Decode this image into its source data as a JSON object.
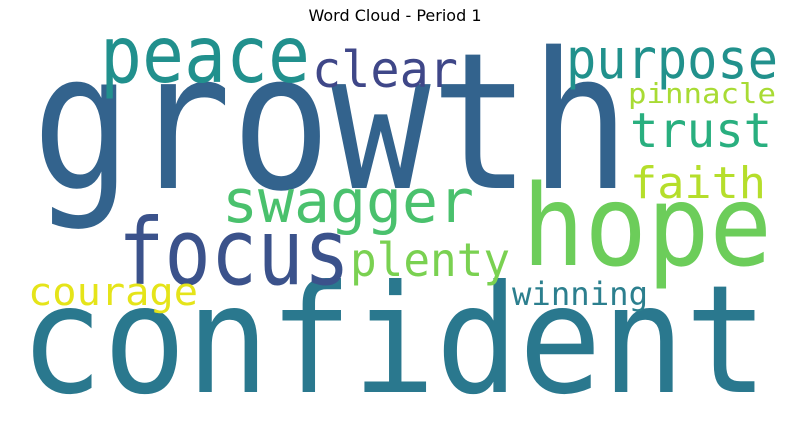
{
  "chart_data": {
    "type": "word_cloud",
    "title": "Word Cloud - Period 1",
    "colormap": "viridis",
    "background": "#ffffff",
    "words": [
      {
        "text": "growth",
        "color": "#33638d",
        "weight": 1.0
      },
      {
        "text": "confident",
        "color": "#2a788e",
        "weight": 0.95
      },
      {
        "text": "hope",
        "color": "#6ccd5a",
        "weight": 0.6
      },
      {
        "text": "focus",
        "color": "#3b528b",
        "weight": 0.45
      },
      {
        "text": "peace",
        "color": "#21908d",
        "weight": 0.4
      },
      {
        "text": "swagger",
        "color": "#4ac16d",
        "weight": 0.33
      },
      {
        "text": "purpose",
        "color": "#21918c",
        "weight": 0.3
      },
      {
        "text": "clear",
        "color": "#3f4788",
        "weight": 0.28
      },
      {
        "text": "trust",
        "color": "#29af7f",
        "weight": 0.28
      },
      {
        "text": "plenty",
        "color": "#7ad151",
        "weight": 0.27
      },
      {
        "text": "faith",
        "color": "#b5de2b",
        "weight": 0.26
      },
      {
        "text": "courage",
        "color": "#e5e419",
        "weight": 0.22
      },
      {
        "text": "winning",
        "color": "#2c7f8e",
        "weight": 0.2
      },
      {
        "text": "pinnacle",
        "color": "#a8db34",
        "weight": 0.16
      }
    ]
  }
}
